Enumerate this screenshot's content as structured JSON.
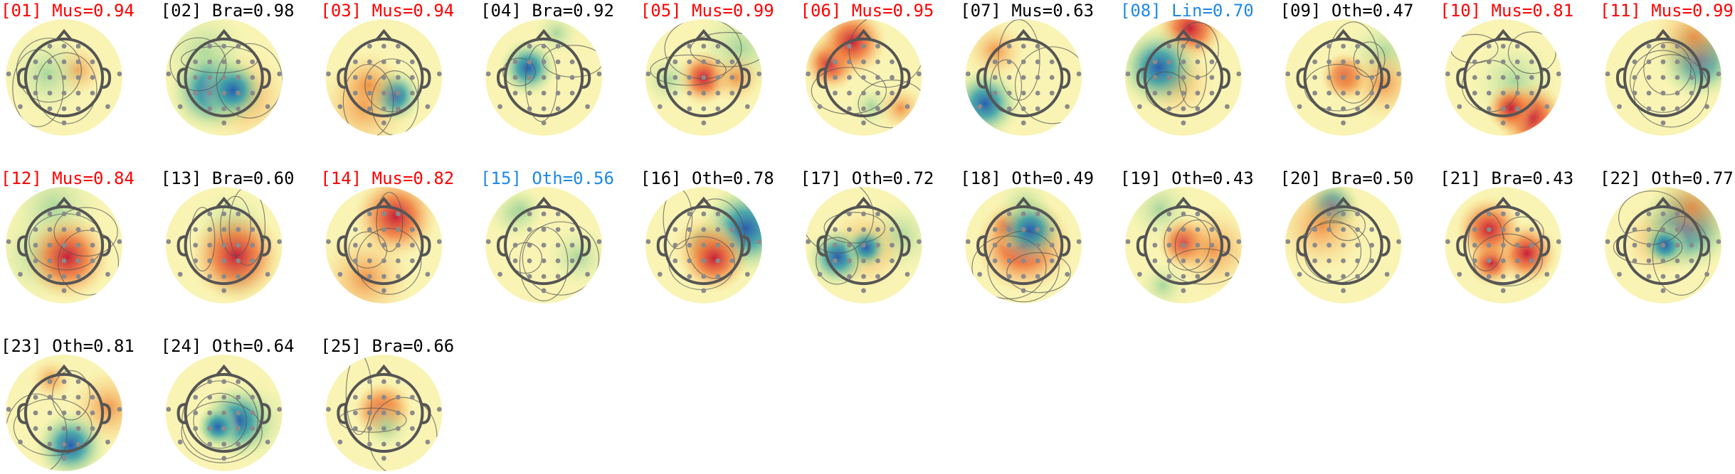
{
  "components": [
    {
      "label": "[01] Mus=0.94",
      "color": "#ff0000"
    },
    {
      "label": "[02] Bra=0.98",
      "color": "#000000"
    },
    {
      "label": "[03] Mus=0.94",
      "color": "#ff0000"
    },
    {
      "label": "[04] Bra=0.92",
      "color": "#000000"
    },
    {
      "label": "[05] Mus=0.99",
      "color": "#ff0000"
    },
    {
      "label": "[06] Mus=0.95",
      "color": "#ff0000"
    },
    {
      "label": "[07] Mus=0.63",
      "color": "#000000"
    },
    {
      "label": "[08] Lin=0.70",
      "color": "#1e88e5"
    },
    {
      "label": "[09] Oth=0.47",
      "color": "#000000"
    },
    {
      "label": "[10] Mus=0.81",
      "color": "#ff0000"
    },
    {
      "label": "[11] Mus=0.99",
      "color": "#ff0000"
    },
    {
      "label": "[12] Mus=0.84",
      "color": "#ff0000"
    },
    {
      "label": "[13] Bra=0.60",
      "color": "#000000"
    },
    {
      "label": "[14] Mus=0.82",
      "color": "#ff0000"
    },
    {
      "label": "[15] Oth=0.56",
      "color": "#1e88e5"
    },
    {
      "label": "[16] Oth=0.78",
      "color": "#000000"
    },
    {
      "label": "[17] Oth=0.72",
      "color": "#000000"
    },
    {
      "label": "[18] Oth=0.49",
      "color": "#000000"
    },
    {
      "label": "[19] Oth=0.43",
      "color": "#000000"
    },
    {
      "label": "[20] Bra=0.50",
      "color": "#000000"
    },
    {
      "label": "[21] Bra=0.43",
      "color": "#000000"
    },
    {
      "label": "[22] Oth=0.77",
      "color": "#000000"
    },
    {
      "label": "[23] Oth=0.81",
      "color": "#000000"
    },
    {
      "label": "[24] Oth=0.64",
      "color": "#000000"
    },
    {
      "label": "[25] Bra=0.66",
      "color": "#000000"
    }
  ]
}
